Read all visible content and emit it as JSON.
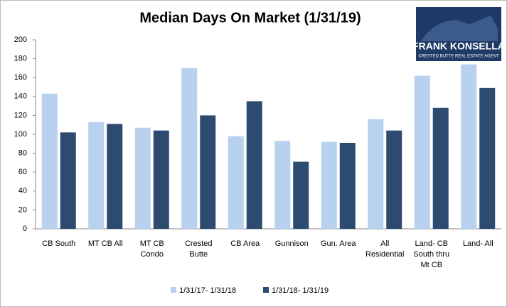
{
  "chart_data": {
    "type": "bar",
    "title": "Median Days On Market (1/31/19)",
    "categories": [
      "CB South",
      "MT CB All",
      "MT CB Condo",
      "Crested Butte",
      "CB Area",
      "Gunnison",
      "Gun. Area",
      "All Residential",
      "Land- CB South thru Mt CB",
      "Land- All"
    ],
    "series": [
      {
        "name": "1/31/17- 1/31/18",
        "color": "#b7d1ef",
        "values": [
          143,
          113,
          107,
          170,
          98,
          93,
          92,
          116,
          162,
          174
        ]
      },
      {
        "name": "1/31/18- 1/31/19",
        "color": "#2d4b70",
        "values": [
          102,
          111,
          104,
          120,
          135,
          71,
          91,
          104,
          128,
          149
        ]
      }
    ],
    "ylim": [
      0,
      200
    ],
    "yticks": [
      0,
      20,
      40,
      60,
      80,
      100,
      120,
      140,
      160,
      180,
      200
    ],
    "grid": false,
    "legend": "bottom"
  },
  "logo": {
    "name": "FRANK KONSELLA",
    "tagline": "CRESTED BUTTE REAL ESTATE AGENT"
  }
}
